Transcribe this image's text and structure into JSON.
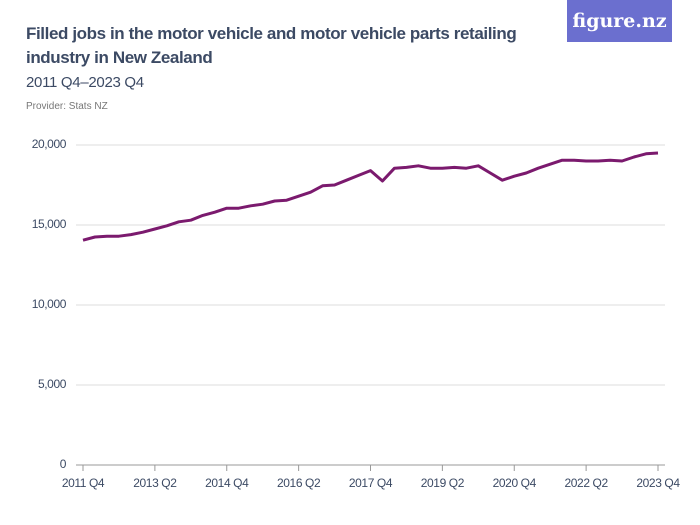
{
  "chart_data": {
    "type": "line",
    "title": "Filled jobs in the motor vehicle and motor vehicle parts retailing industry in New Zealand",
    "subtitle": "2011 Q4–2023 Q4",
    "provider": "Provider: Stats NZ",
    "logo": "figure.nz",
    "categories": [
      "2011 Q4",
      null,
      null,
      null,
      null,
      null,
      "2013 Q2",
      null,
      null,
      null,
      null,
      null,
      "2014 Q4",
      null,
      null,
      null,
      null,
      null,
      "2016 Q2",
      null,
      null,
      null,
      null,
      null,
      "2017 Q4",
      null,
      null,
      null,
      null,
      null,
      "2019 Q2",
      null,
      null,
      null,
      null,
      null,
      "2020 Q4",
      null,
      null,
      null,
      null,
      null,
      "2022 Q2",
      null,
      null,
      null,
      null,
      null,
      "2023 Q4"
    ],
    "values": [
      14050,
      14250,
      14300,
      14300,
      14400,
      14550,
      14750,
      14950,
      15200,
      15300,
      15600,
      15800,
      16050,
      16050,
      16200,
      16300,
      16500,
      16550,
      16800,
      17050,
      17450,
      17500,
      17800,
      18100,
      18400,
      17750,
      18550,
      18600,
      18700,
      18550,
      18550,
      18600,
      18550,
      18700,
      18250,
      17800,
      18050,
      18250,
      18550,
      18800,
      19050,
      19050,
      19000,
      19000,
      19050,
      19000,
      19250,
      19450,
      19500
    ],
    "color": "#7b1a6e",
    "ylim": [
      0,
      20000
    ],
    "yticks": [
      0,
      {
        "value": 5000,
        "label": "5,000"
      },
      {
        "value": 10000,
        "label": "10,000"
      },
      {
        "value": 15000,
        "label": "15,000"
      },
      {
        "value": 20000,
        "label": "20,000"
      }
    ],
    "grid": true
  }
}
